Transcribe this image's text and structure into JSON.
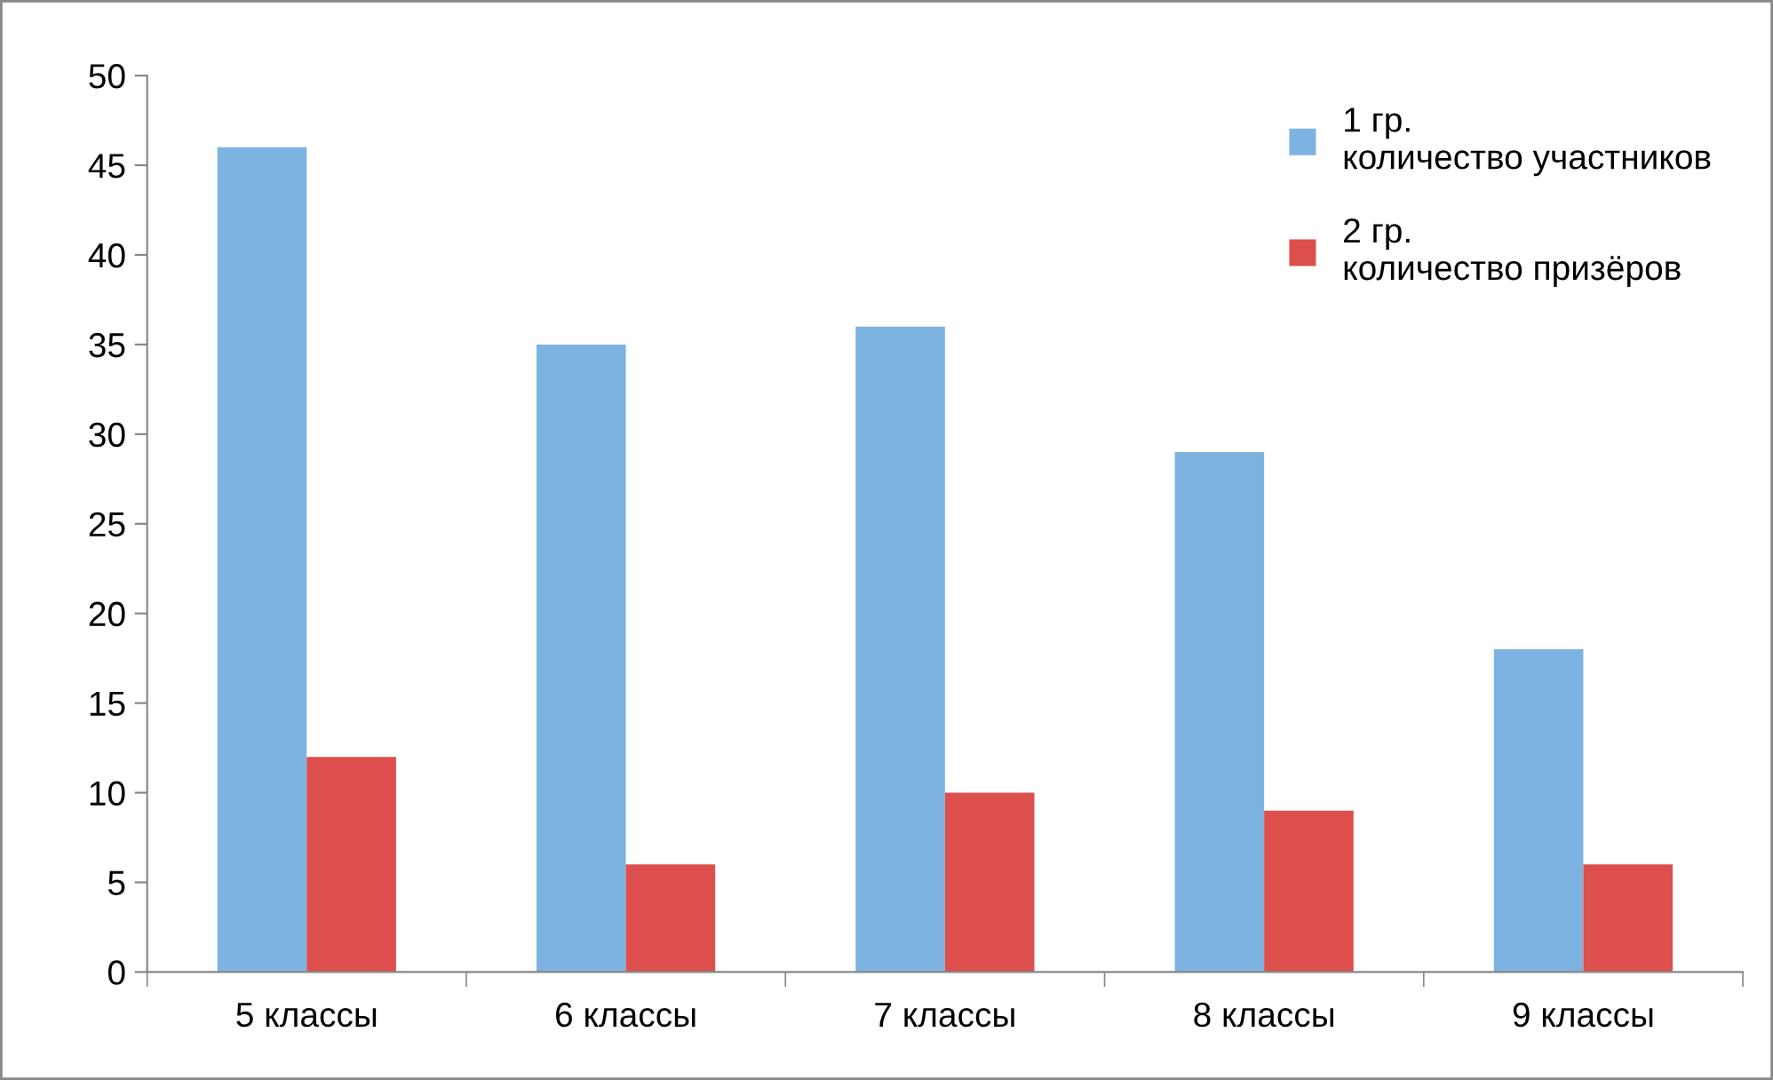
{
  "chart_data": {
    "type": "bar",
    "categories": [
      "5 классы",
      "6 классы",
      "7 классы",
      "8 классы",
      "9 классы"
    ],
    "series": [
      {
        "name": "1 гр.\nколичество участников",
        "color": "#7db3e1",
        "values": [
          46,
          35,
          36,
          29,
          18
        ]
      },
      {
        "name": "2 гр.\nколичество призёров",
        "color": "#dc4f4c",
        "values": [
          12,
          6,
          10,
          9,
          6
        ]
      }
    ],
    "ylim": [
      0,
      50
    ],
    "yticks": [
      0,
      5,
      10,
      15,
      20,
      25,
      30,
      35,
      40,
      45,
      50
    ],
    "grid": false,
    "legend": "top right"
  }
}
